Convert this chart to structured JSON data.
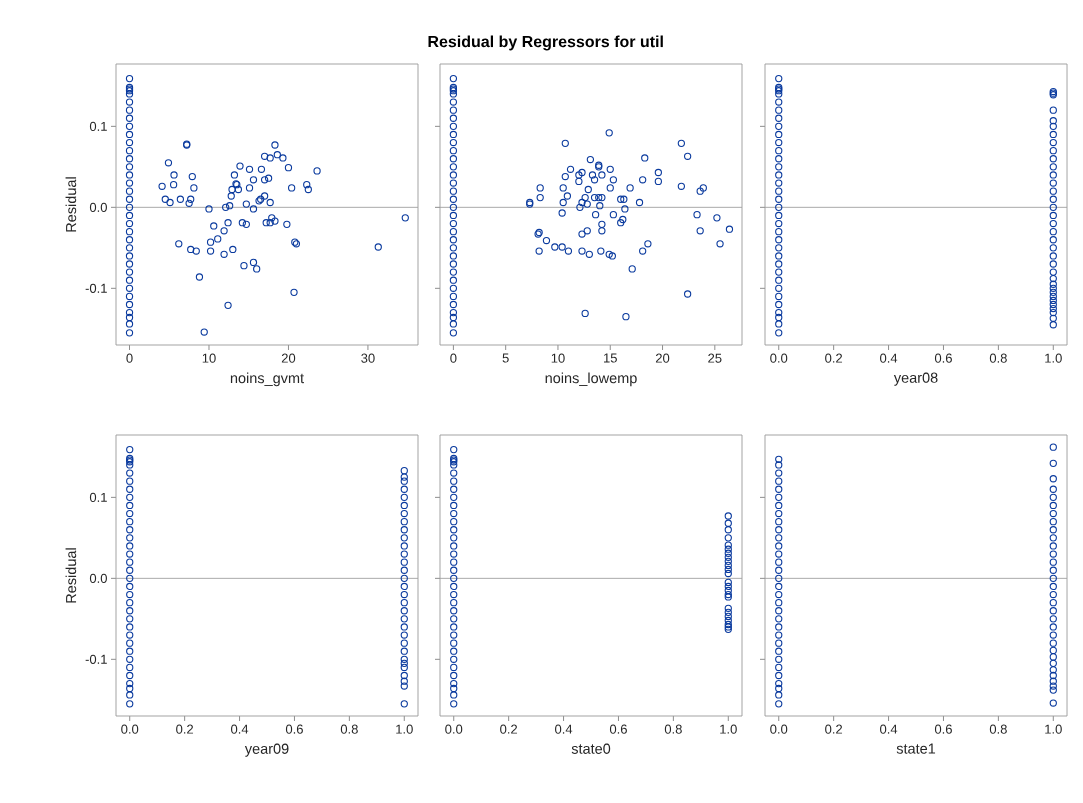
{
  "chart_data": [
    {
      "type": "scatter",
      "xlabel": "noins_gvmt",
      "ylabel": "Residual",
      "color": "#0a3a9e",
      "marker": "circle",
      "x": [
        0,
        0,
        0,
        0,
        0,
        0,
        0,
        0,
        0,
        0,
        0,
        0,
        0,
        0,
        0,
        0,
        0,
        0,
        0,
        0,
        0,
        0,
        0,
        0,
        0,
        0,
        0,
        0,
        0,
        0,
        0,
        0,
        0,
        0,
        0,
        4.9,
        5.6,
        5.55,
        4.1,
        4.5,
        5.1,
        6.4,
        7.2,
        7.2,
        7.9,
        8.1,
        7.7,
        7.5,
        6.2,
        7.7,
        8.4,
        8.8,
        9.4,
        10.0,
        10.6,
        11.9,
        12.4,
        11.1,
        10.2,
        10.2,
        11.9,
        13.0,
        12.4,
        12.1,
        12.6,
        12.8,
        12.9,
        13.2,
        13.4,
        13.5,
        13.7,
        13.9,
        14.7,
        15.1,
        15.1,
        15.6,
        15.6,
        14.2,
        14.7,
        14.4,
        15.6,
        16.0,
        16.3,
        16.5,
        16.6,
        17.0,
        17.0,
        17.5,
        17.0,
        17.7,
        17.2,
        17.7,
        17.9,
        18.3,
        17.7,
        18.3,
        18.6,
        19.3,
        20.0,
        19.8,
        20.4,
        20.8,
        21.0,
        20.7,
        22.3,
        22.5,
        23.6,
        31.3,
        34.7
      ],
      "values": [
        0.159,
        0.148,
        0.146,
        0.144,
        0.14,
        0.13,
        0.12,
        0.11,
        0.1,
        0.09,
        0.08,
        0.07,
        0.06,
        0.05,
        0.04,
        0.03,
        0.02,
        0.01,
        0.0,
        -0.01,
        -0.02,
        -0.03,
        -0.04,
        -0.05,
        -0.06,
        -0.07,
        -0.08,
        -0.09,
        -0.1,
        -0.11,
        -0.12,
        -0.13,
        -0.136,
        -0.144,
        -0.155,
        0.055,
        0.04,
        0.028,
        0.026,
        0.01,
        0.006,
        0.01,
        0.078,
        0.077,
        0.038,
        0.024,
        0.01,
        0.005,
        -0.045,
        -0.052,
        -0.054,
        -0.086,
        -0.154,
        -0.002,
        -0.023,
        -0.029,
        -0.019,
        -0.039,
        -0.043,
        -0.054,
        -0.058,
        -0.052,
        -0.121,
        0.0,
        0.002,
        0.014,
        0.022,
        0.04,
        0.029,
        0.028,
        0.022,
        0.051,
        0.004,
        0.024,
        0.047,
        0.034,
        -0.002,
        -0.019,
        -0.021,
        -0.072,
        -0.068,
        -0.076,
        0.008,
        0.01,
        0.047,
        0.063,
        0.034,
        0.036,
        0.014,
        0.006,
        -0.019,
        -0.019,
        -0.013,
        -0.017,
        0.061,
        0.077,
        0.065,
        0.061,
        0.049,
        -0.021,
        0.024,
        -0.043,
        -0.045,
        -0.105,
        0.028,
        0.022,
        0.045,
        -0.049,
        -0.013
      ],
      "xlim": [
        -1.7,
        36.3
      ],
      "ylim": [
        -0.17,
        0.177
      ],
      "xticks": [
        0,
        10,
        20,
        30
      ],
      "yticks": [
        {
          "value": -0.1,
          "label": "-0.1"
        },
        {
          "value": 0,
          "label": "0.0"
        },
        {
          "value": 0.1,
          "label": "0.1"
        }
      ],
      "ref_lines": [
        {
          "axis": "y",
          "value": 0,
          "color": "#a0a0a0"
        }
      ]
    },
    {
      "type": "scatter",
      "title": "Residual by Regressors for util",
      "xlabel": "noins_lowemp",
      "color": "#0a3a9e",
      "marker": "circle",
      "tick_labels": "x",
      "x": [
        0,
        0,
        0,
        0,
        0,
        0,
        0,
        0,
        0,
        0,
        0,
        0,
        0,
        0,
        0,
        0,
        0,
        0,
        0,
        0,
        0,
        0,
        0,
        0,
        0,
        0,
        0,
        0,
        0,
        0,
        0,
        0,
        0,
        0,
        0,
        10.7,
        14.9,
        13.1,
        13.9,
        13.9,
        11.2,
        10.7,
        12.0,
        12.3,
        12.0,
        13.3,
        13.5,
        14.2,
        15.0,
        15.3,
        15.0,
        10.5,
        10.9,
        10.5,
        10.4,
        12.9,
        12.6,
        12.3,
        12.8,
        12.1,
        13.5,
        13.9,
        14.2,
        14.0,
        13.6,
        8.3,
        8.3,
        7.3,
        7.3,
        16.9,
        16.0,
        16.3,
        16.4,
        15.3,
        16.2,
        16.0,
        17.8,
        18.1,
        18.3,
        19.6,
        19.6,
        21.8,
        22.4,
        21.8,
        23.6,
        23.9,
        23.3,
        25.2,
        23.6,
        26.4,
        25.5,
        22.4,
        14.2,
        14.2,
        12.8,
        12.3,
        8.2,
        8.1,
        8.9,
        8.2,
        9.7,
        10.4,
        11.0,
        12.3,
        13.0,
        14.1,
        14.9,
        15.2,
        17.1,
        18.1,
        18.6,
        12.6,
        16.5
      ],
      "values": [
        0.159,
        0.148,
        0.146,
        0.144,
        0.14,
        0.13,
        0.12,
        0.11,
        0.1,
        0.09,
        0.08,
        0.07,
        0.06,
        0.05,
        0.04,
        0.03,
        0.02,
        0.01,
        0.0,
        -0.01,
        -0.02,
        -0.03,
        -0.04,
        -0.05,
        -0.06,
        -0.07,
        -0.08,
        -0.09,
        -0.1,
        -0.11,
        -0.12,
        -0.13,
        -0.136,
        -0.144,
        -0.155,
        0.079,
        0.092,
        0.059,
        0.052,
        0.05,
        0.047,
        0.038,
        0.04,
        0.043,
        0.032,
        0.04,
        0.034,
        0.04,
        0.047,
        0.034,
        0.024,
        0.024,
        0.014,
        0.006,
        -0.007,
        0.022,
        0.012,
        0.006,
        0.004,
        0.0,
        0.012,
        0.012,
        0.012,
        0.002,
        -0.009,
        0.024,
        0.012,
        0.006,
        0.004,
        0.024,
        0.01,
        0.01,
        -0.002,
        -0.009,
        -0.015,
        -0.019,
        0.006,
        0.034,
        0.061,
        0.043,
        0.032,
        0.079,
        0.063,
        0.026,
        0.02,
        0.024,
        -0.009,
        -0.013,
        -0.029,
        -0.027,
        -0.045,
        -0.107,
        -0.021,
        -0.029,
        -0.029,
        -0.033,
        -0.031,
        -0.033,
        -0.041,
        -0.054,
        -0.049,
        -0.049,
        -0.054,
        -0.054,
        -0.058,
        -0.054,
        -0.058,
        -0.06,
        -0.076,
        -0.054,
        -0.045,
        -0.131,
        -0.135
      ],
      "xlim": [
        -1.28,
        27.6
      ],
      "ylim": [
        -0.17,
        0.177
      ],
      "xticks": [
        0,
        5,
        10,
        15,
        20,
        25
      ],
      "yticks": [
        {
          "value": -0.1,
          "label": null
        },
        {
          "value": 0,
          "label": null
        },
        {
          "value": 0.1,
          "label": null
        }
      ],
      "ref_lines": [
        {
          "axis": "y",
          "value": 0,
          "color": "#a0a0a0"
        }
      ]
    },
    {
      "type": "scatter",
      "xlabel": "year08",
      "color": "#0a3a9e",
      "marker": "circle",
      "tick_labels": "x",
      "x": [
        0,
        0,
        0,
        0,
        0,
        0,
        0,
        0,
        0,
        0,
        0,
        0,
        0,
        0,
        0,
        0,
        0,
        0,
        0,
        0,
        0,
        0,
        0,
        0,
        0,
        0,
        0,
        0,
        0,
        0,
        0,
        0,
        0,
        0,
        0,
        1,
        1,
        1,
        1,
        1,
        1,
        1,
        1,
        1,
        1,
        1,
        1,
        1,
        1,
        1,
        1,
        1,
        1,
        1,
        1,
        1,
        1,
        1,
        1,
        1,
        1,
        1,
        1,
        1,
        1,
        1,
        1,
        1,
        1,
        1
      ],
      "values": [
        0.159,
        0.148,
        0.146,
        0.144,
        0.14,
        0.13,
        0.12,
        0.11,
        0.1,
        0.09,
        0.08,
        0.07,
        0.06,
        0.05,
        0.04,
        0.03,
        0.02,
        0.01,
        0.0,
        -0.01,
        -0.02,
        -0.03,
        -0.04,
        -0.05,
        -0.06,
        -0.07,
        -0.08,
        -0.09,
        -0.1,
        -0.11,
        -0.12,
        -0.13,
        -0.136,
        -0.144,
        -0.155,
        0.143,
        0.141,
        0.139,
        0.12,
        0.107,
        0.1,
        0.09,
        0.08,
        0.07,
        0.06,
        0.05,
        0.04,
        0.03,
        0.02,
        0.01,
        0.0,
        -0.01,
        -0.02,
        -0.03,
        -0.04,
        -0.05,
        -0.06,
        -0.07,
        -0.08,
        -0.088,
        -0.095,
        -0.1,
        -0.105,
        -0.11,
        -0.115,
        -0.12,
        -0.125,
        -0.13,
        -0.137,
        -0.145
      ],
      "xlim": [
        -0.05,
        1.05
      ],
      "ylim": [
        -0.17,
        0.177
      ],
      "xticks": [
        {
          "value": 0,
          "label": "0.0"
        },
        {
          "value": 0.2,
          "label": "0.2"
        },
        {
          "value": 0.4,
          "label": "0.4"
        },
        {
          "value": 0.6,
          "label": "0.6"
        },
        {
          "value": 0.8,
          "label": "0.8"
        },
        {
          "value": 1,
          "label": "1.0"
        }
      ],
      "yticks": [
        {
          "value": -0.1,
          "label": null
        },
        {
          "value": 0,
          "label": null
        },
        {
          "value": 0.1,
          "label": null
        }
      ],
      "ref_lines": [
        {
          "axis": "y",
          "value": 0,
          "color": "#a0a0a0"
        }
      ]
    },
    {
      "type": "scatter",
      "xlabel": "year09",
      "ylabel": "Residual",
      "color": "#0a3a9e",
      "marker": "circle",
      "x": [
        0,
        0,
        0,
        0,
        0,
        0,
        0,
        0,
        0,
        0,
        0,
        0,
        0,
        0,
        0,
        0,
        0,
        0,
        0,
        0,
        0,
        0,
        0,
        0,
        0,
        0,
        0,
        0,
        0,
        0,
        0,
        0,
        0,
        0,
        0,
        1,
        1,
        1,
        1,
        1,
        1,
        1,
        1,
        1,
        1,
        1,
        1,
        1,
        1,
        1,
        1,
        1,
        1,
        1,
        1,
        1,
        1,
        1,
        1,
        1,
        1,
        1,
        1,
        1,
        1,
        1
      ],
      "values": [
        0.159,
        0.148,
        0.146,
        0.144,
        0.14,
        0.13,
        0.12,
        0.11,
        0.1,
        0.09,
        0.08,
        0.07,
        0.06,
        0.05,
        0.04,
        0.03,
        0.02,
        0.01,
        0.0,
        -0.01,
        -0.02,
        -0.03,
        -0.04,
        -0.05,
        -0.06,
        -0.07,
        -0.08,
        -0.09,
        -0.1,
        -0.11,
        -0.12,
        -0.13,
        -0.136,
        -0.144,
        -0.155,
        0.133,
        0.125,
        0.12,
        0.11,
        0.1,
        0.09,
        0.08,
        0.07,
        0.06,
        0.05,
        0.04,
        0.03,
        0.02,
        0.01,
        0.0,
        -0.01,
        -0.02,
        -0.03,
        -0.04,
        -0.05,
        -0.06,
        -0.07,
        -0.08,
        -0.09,
        -0.1,
        -0.105,
        -0.11,
        -0.12,
        -0.127,
        -0.133,
        -0.155
      ],
      "xlim": [
        -0.05,
        1.05
      ],
      "ylim": [
        -0.17,
        0.177
      ],
      "xticks": [
        {
          "value": 0,
          "label": "0.0"
        },
        {
          "value": 0.2,
          "label": "0.2"
        },
        {
          "value": 0.4,
          "label": "0.4"
        },
        {
          "value": 0.6,
          "label": "0.6"
        },
        {
          "value": 0.8,
          "label": "0.8"
        },
        {
          "value": 1,
          "label": "1.0"
        }
      ],
      "yticks": [
        {
          "value": -0.1,
          "label": "-0.1"
        },
        {
          "value": 0,
          "label": "0.0"
        },
        {
          "value": 0.1,
          "label": "0.1"
        }
      ],
      "ref_lines": [
        {
          "axis": "y",
          "value": 0,
          "color": "#a0a0a0"
        }
      ]
    },
    {
      "type": "scatter",
      "xlabel": "state0",
      "color": "#0a3a9e",
      "marker": "circle",
      "tick_labels": "x",
      "x": [
        0,
        0,
        0,
        0,
        0,
        0,
        0,
        0,
        0,
        0,
        0,
        0,
        0,
        0,
        0,
        0,
        0,
        0,
        0,
        0,
        0,
        0,
        0,
        0,
        0,
        0,
        0,
        0,
        0,
        0,
        0,
        0,
        0,
        0,
        0,
        1,
        1,
        1,
        1,
        1,
        1,
        1,
        1,
        1,
        1,
        1,
        1,
        1,
        1,
        1,
        1,
        1,
        1,
        1,
        1,
        1,
        1,
        1,
        1
      ],
      "values": [
        0.159,
        0.148,
        0.146,
        0.144,
        0.14,
        0.13,
        0.12,
        0.11,
        0.1,
        0.09,
        0.08,
        0.07,
        0.06,
        0.05,
        0.04,
        0.03,
        0.02,
        0.01,
        0.0,
        -0.01,
        -0.02,
        -0.03,
        -0.04,
        -0.05,
        -0.06,
        -0.07,
        -0.08,
        -0.09,
        -0.1,
        -0.11,
        -0.12,
        -0.13,
        -0.136,
        -0.144,
        -0.155,
        0.077,
        0.068,
        0.06,
        0.05,
        0.041,
        0.036,
        0.031,
        0.026,
        0.021,
        0.016,
        0.011,
        0.006,
        -0.005,
        -0.01,
        -0.015,
        -0.02,
        -0.023,
        -0.037,
        -0.042,
        -0.047,
        -0.052,
        -0.057,
        -0.06,
        -0.063
      ],
      "xlim": [
        -0.05,
        1.05
      ],
      "ylim": [
        -0.17,
        0.177
      ],
      "xticks": [
        {
          "value": 0,
          "label": "0.0"
        },
        {
          "value": 0.2,
          "label": "0.2"
        },
        {
          "value": 0.4,
          "label": "0.4"
        },
        {
          "value": 0.6,
          "label": "0.6"
        },
        {
          "value": 0.8,
          "label": "0.8"
        },
        {
          "value": 1,
          "label": "1.0"
        }
      ],
      "yticks": [
        {
          "value": -0.1,
          "label": null
        },
        {
          "value": 0,
          "label": null
        },
        {
          "value": 0.1,
          "label": null
        }
      ],
      "ref_lines": [
        {
          "axis": "y",
          "value": 0,
          "color": "#a0a0a0"
        }
      ]
    },
    {
      "type": "scatter",
      "xlabel": "state1",
      "color": "#0a3a9e",
      "marker": "circle",
      "tick_labels": "x",
      "x": [
        0,
        0,
        0,
        0,
        0,
        0,
        0,
        0,
        0,
        0,
        0,
        0,
        0,
        0,
        0,
        0,
        0,
        0,
        0,
        0,
        0,
        0,
        0,
        0,
        0,
        0,
        0,
        0,
        0,
        0,
        0,
        0,
        1,
        1,
        1,
        1,
        1,
        1,
        1,
        1,
        1,
        1,
        1,
        1,
        1,
        1,
        1,
        1,
        1,
        1,
        1,
        1,
        1,
        1,
        1,
        1,
        1,
        1,
        1,
        1,
        1,
        1,
        1,
        1
      ],
      "values": [
        0.147,
        0.14,
        0.13,
        0.12,
        0.11,
        0.1,
        0.09,
        0.08,
        0.07,
        0.06,
        0.05,
        0.04,
        0.03,
        0.02,
        0.01,
        0.0,
        -0.01,
        -0.02,
        -0.03,
        -0.04,
        -0.05,
        -0.06,
        -0.07,
        -0.08,
        -0.09,
        -0.1,
        -0.11,
        -0.12,
        -0.13,
        -0.136,
        -0.144,
        -0.155,
        0.162,
        0.142,
        0.123,
        0.11,
        0.1,
        0.09,
        0.08,
        0.07,
        0.06,
        0.05,
        0.04,
        0.03,
        0.02,
        0.01,
        0.0,
        -0.01,
        -0.02,
        -0.03,
        -0.04,
        -0.05,
        -0.06,
        -0.07,
        -0.08,
        -0.089,
        -0.097,
        -0.105,
        -0.113,
        -0.12,
        -0.127,
        -0.133,
        -0.138,
        -0.154
      ],
      "xlim": [
        -0.05,
        1.05
      ],
      "ylim": [
        -0.17,
        0.177
      ],
      "xticks": [
        {
          "value": 0,
          "label": "0.0"
        },
        {
          "value": 0.2,
          "label": "0.2"
        },
        {
          "value": 0.4,
          "label": "0.4"
        },
        {
          "value": 0.6,
          "label": "0.6"
        },
        {
          "value": 0.8,
          "label": "0.8"
        },
        {
          "value": 1,
          "label": "1.0"
        }
      ],
      "yticks": [
        {
          "value": -0.1,
          "label": null
        },
        {
          "value": 0,
          "label": null
        },
        {
          "value": 0.1,
          "label": null
        }
      ],
      "ref_lines": [
        {
          "axis": "y",
          "value": 0,
          "color": "#a0a0a0"
        }
      ]
    }
  ]
}
